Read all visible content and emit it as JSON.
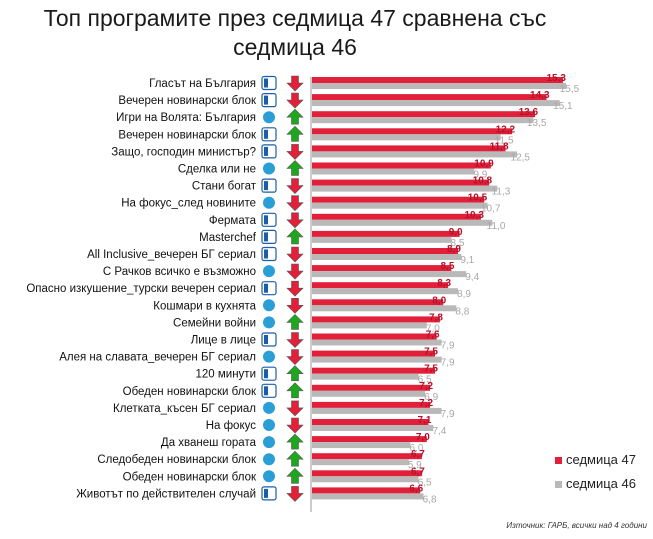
{
  "title": "Топ програмите през седмица 47 сравнена със седмица 46",
  "source": "Източник: ГАРБ, всички над 4 години",
  "chart_data": {
    "type": "bar",
    "orientation": "horizontal",
    "title": "Топ програмите през седмица 47 сравнена със седмица 46",
    "xlim": [
      0,
      16
    ],
    "grid": false,
    "legend_position": "right",
    "categories": [
      "Гласът на България",
      "Вечерен новинарски блок",
      "Игри на Волята: България",
      "Вечерен новинарски блок",
      "Защо, господин министър?",
      "Сделка или не",
      "Стани богат",
      "На фокус_след новините",
      "Фермата",
      "Masterchef",
      "All Inclusive_вечерен БГ сериал",
      "С Рачков всичко е възможно",
      "Опасно изкушение_турски вечерен сериал",
      "Кошмари в кухнята",
      "Семейни войни",
      "Лице в лице",
      "Алея на славата_вечерен БГ сериал",
      "120 минути",
      "Обеден новинарски блок",
      "Клетката_късен БГ сериал",
      "На фокус",
      "Да хванеш гората",
      "Следобеден новинарски блок",
      "Обеден новинарски блок",
      "Животът по действителен случай"
    ],
    "channels": [
      "btv",
      "btv",
      "nova",
      "btv",
      "btv",
      "nova",
      "btv",
      "nova",
      "btv",
      "btv",
      "btv",
      "nova",
      "btv",
      "nova",
      "nova",
      "btv",
      "nova",
      "btv",
      "btv",
      "nova",
      "nova",
      "nova",
      "nova",
      "nova",
      "btv"
    ],
    "trend": [
      "down",
      "down",
      "up",
      "up",
      "down",
      "up",
      "down",
      "down",
      "down",
      "up",
      "down",
      "down",
      "down",
      "down",
      "up",
      "down",
      "down",
      "up",
      "up",
      "down",
      "down",
      "up",
      "up",
      "up",
      "down"
    ],
    "series": [
      {
        "name": "седмица 47",
        "color": "#e2203a",
        "values": [
          15.3,
          14.3,
          13.6,
          12.2,
          11.8,
          10.9,
          10.8,
          10.5,
          10.3,
          9.0,
          8.9,
          8.5,
          8.3,
          8.0,
          7.8,
          7.6,
          7.5,
          7.5,
          7.2,
          7.2,
          7.1,
          7.0,
          6.7,
          6.7,
          6.6
        ],
        "labels": [
          "15,3",
          "14,3",
          "13,6",
          "12,2",
          "11,8",
          "10,9",
          "10,8",
          "10,5",
          "10,3",
          "9,0",
          "8,9",
          "8,5",
          "8,3",
          "8,0",
          "7,8",
          "7,6",
          "7,5",
          "7,5",
          "7,2",
          "7,2",
          "7,1",
          "7,0",
          "6,7",
          "6,7",
          "6,6"
        ]
      },
      {
        "name": "седмица 46",
        "color": "#b9b9b9",
        "values": [
          15.5,
          15.1,
          13.5,
          11.5,
          12.5,
          9.9,
          11.3,
          10.7,
          11.0,
          8.5,
          9.1,
          9.4,
          8.9,
          8.8,
          7.0,
          7.9,
          7.9,
          6.5,
          6.9,
          7.9,
          7.4,
          6.0,
          5.9,
          6.5,
          6.8
        ],
        "labels": [
          "15,5",
          "15,1",
          "13,5",
          "11,5",
          "12,5",
          "9,9",
          "11,3",
          "10,7",
          "11,0",
          "8,5",
          "9,1",
          "9,4",
          "8,9",
          "8,8",
          "7,0",
          "7,9",
          "7,9",
          "6,5",
          "6,9",
          "7,9",
          "7,4",
          "6,0",
          "5,9",
          "6,5",
          "6,8"
        ]
      }
    ]
  },
  "icons": {
    "btv": "btv-logo-icon",
    "nova": "nova-logo-icon",
    "up": "arrow-up-icon",
    "down": "arrow-down-icon"
  },
  "colors": {
    "up": "#1fa61f",
    "down": "#e2203a",
    "nova_fill": "#2a9fd6",
    "btv_fill": "#1b5ea8"
  }
}
